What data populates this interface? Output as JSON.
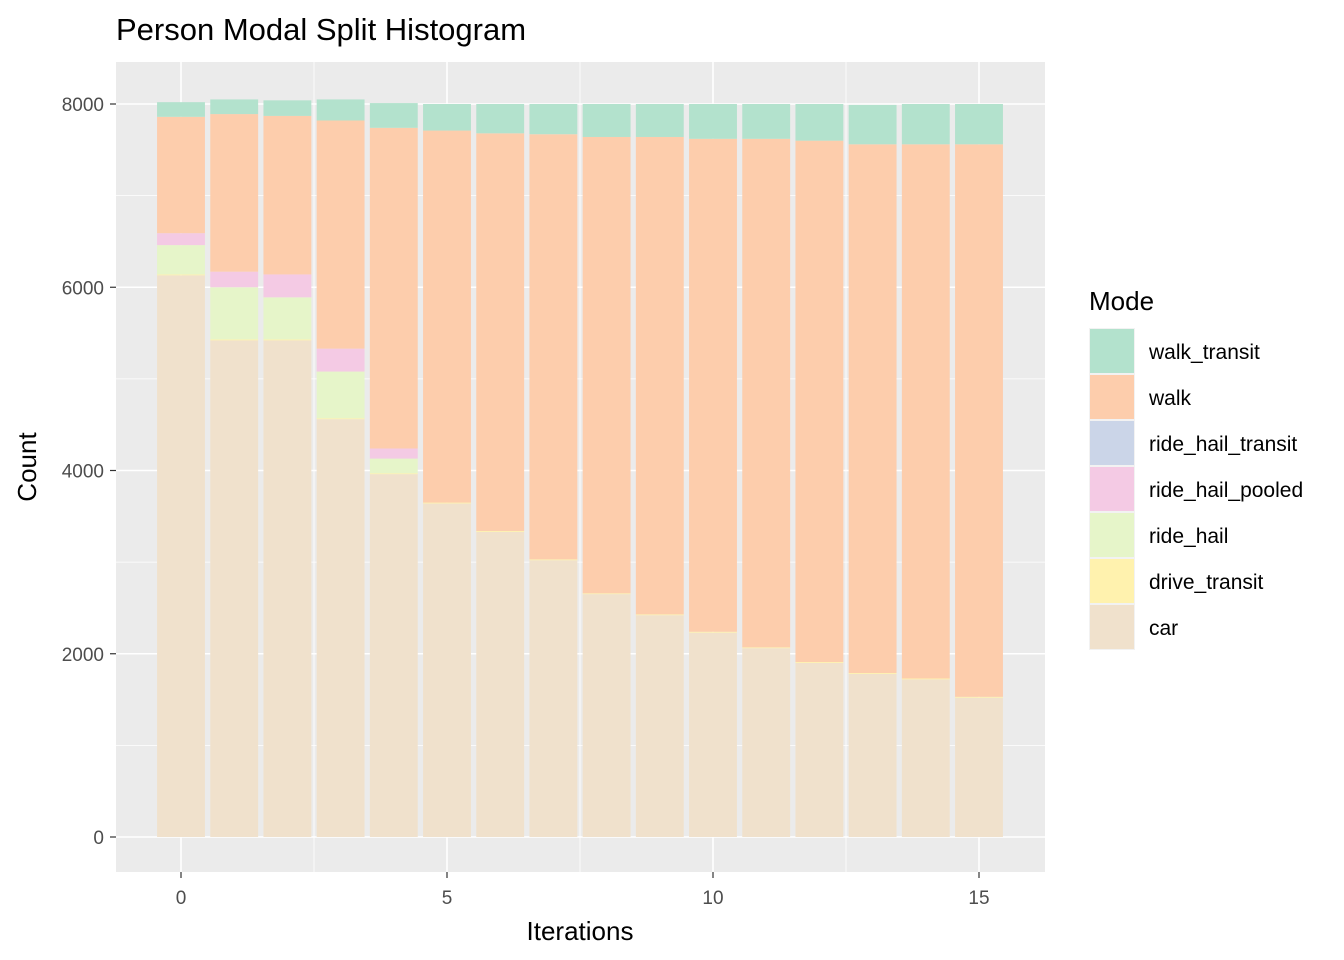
{
  "chart_data": {
    "type": "bar",
    "stacked": true,
    "title": "Person Modal Split Histogram",
    "xlabel": "Iterations",
    "ylabel": "Count",
    "x": [
      0,
      1,
      2,
      3,
      4,
      5,
      6,
      7,
      8,
      9,
      10,
      11,
      12,
      13,
      14,
      15
    ],
    "xlim": [
      -0.5,
      15.5
    ],
    "ylim": [
      0,
      8000
    ],
    "x_ticks": [
      0,
      5,
      10,
      15
    ],
    "y_ticks": [
      0,
      2000,
      4000,
      6000,
      8000
    ],
    "x_tick_labels": [
      "0",
      "5",
      "10",
      "15"
    ],
    "y_tick_labels": [
      "0",
      "2000",
      "4000",
      "6000",
      "8000"
    ],
    "grid": true,
    "legend": {
      "title": "Mode",
      "position": "right"
    },
    "series": [
      {
        "name": "car",
        "color": "#f0e1cc",
        "values": [
          6130,
          5420,
          5420,
          4560,
          3960,
          3640,
          3330,
          3020,
          2650,
          2420,
          2230,
          2060,
          1900,
          1780,
          1720,
          1520
        ]
      },
      {
        "name": "drive_transit",
        "color": "#fff2ae",
        "values": [
          10,
          10,
          10,
          10,
          10,
          10,
          10,
          10,
          10,
          10,
          10,
          10,
          10,
          10,
          10,
          10
        ]
      },
      {
        "name": "ride_hail",
        "color": "#e6f5c9",
        "values": [
          320,
          570,
          460,
          510,
          160,
          0,
          0,
          0,
          0,
          0,
          0,
          0,
          0,
          0,
          0,
          0
        ]
      },
      {
        "name": "ride_hail_pooled",
        "color": "#f4cae4",
        "values": [
          130,
          170,
          250,
          250,
          110,
          0,
          0,
          0,
          0,
          0,
          0,
          0,
          0,
          0,
          0,
          0
        ]
      },
      {
        "name": "ride_hail_transit",
        "color": "#cbd5e8",
        "values": [
          0,
          0,
          0,
          0,
          0,
          0,
          0,
          0,
          0,
          0,
          0,
          0,
          0,
          0,
          0,
          0
        ]
      },
      {
        "name": "walk",
        "color": "#fdcdac",
        "values": [
          1270,
          1720,
          1730,
          2490,
          3500,
          4060,
          4340,
          4640,
          4980,
          5210,
          5380,
          5550,
          5690,
          5770,
          5830,
          6030
        ]
      },
      {
        "name": "walk_transit",
        "color": "#b3e2cd",
        "values": [
          160,
          160,
          170,
          230,
          270,
          290,
          320,
          330,
          360,
          360,
          380,
          380,
          400,
          430,
          440,
          440
        ]
      }
    ],
    "legend_order": [
      "walk_transit",
      "walk",
      "ride_hail_transit",
      "ride_hail_pooled",
      "ride_hail",
      "drive_transit",
      "car"
    ]
  }
}
